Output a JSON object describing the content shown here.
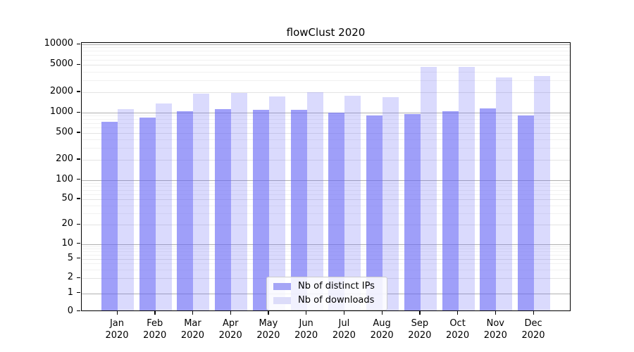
{
  "chart_data": {
    "type": "bar",
    "title": "flowClust 2020",
    "categories": [
      "Jan",
      "Feb",
      "Mar",
      "Apr",
      "May",
      "Jun",
      "Jul",
      "Aug",
      "Sep",
      "Oct",
      "Nov",
      "Dec"
    ],
    "category_year": "2020",
    "series": [
      {
        "name": "Nb of distinct IPs",
        "values": [
          700,
          800,
          1000,
          1070,
          1050,
          1060,
          950,
          865,
          910,
          1000,
          1110,
          870
        ]
      },
      {
        "name": "Nb of downloads",
        "values": [
          1070,
          1300,
          1800,
          1870,
          1650,
          1880,
          1700,
          1600,
          4500,
          4500,
          3100,
          3250
        ]
      }
    ],
    "yticks": [
      0,
      1,
      2,
      5,
      10,
      20,
      50,
      100,
      200,
      500,
      1000,
      2000,
      5000,
      10000
    ],
    "yscale": "symlog",
    "ylim": [
      0,
      10000
    ],
    "grid": true,
    "legend_position": "bottom-center",
    "colors": {
      "ips_bar": "rgba(100,100,245,0.62)",
      "downloads_bar": "rgba(100,100,245,0.24)",
      "ips_legend": "#a5a5f6",
      "downloads_legend": "#dcdcf9",
      "axis": "#000000",
      "grid_major": "#b0b0b0",
      "grid_minor": "#f1f1f1"
    }
  }
}
